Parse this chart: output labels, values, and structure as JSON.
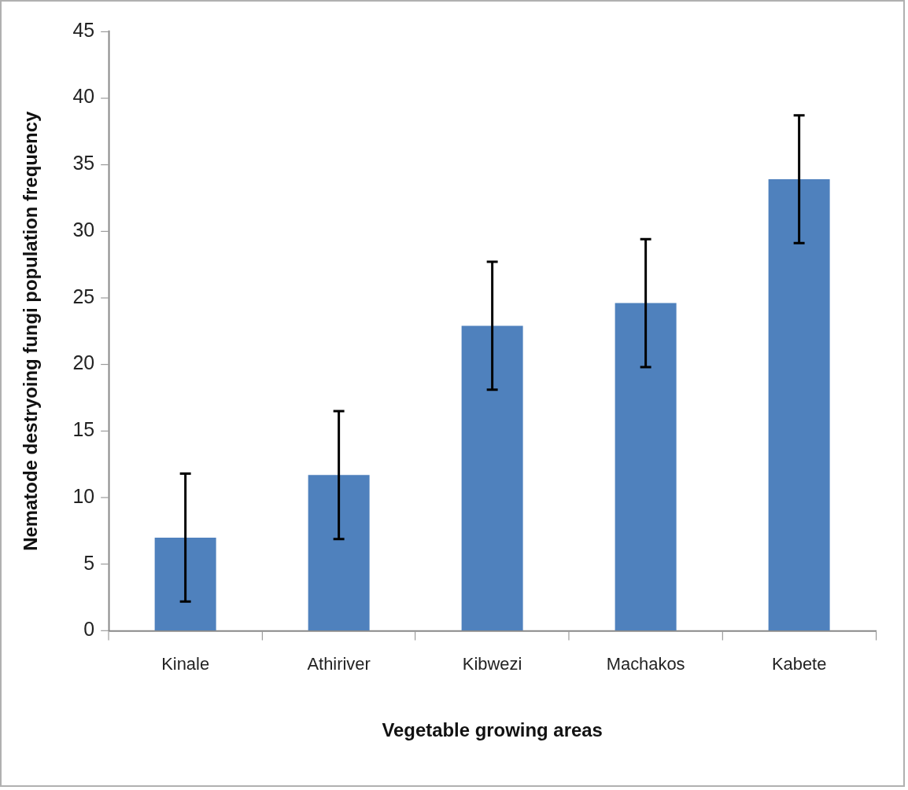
{
  "chart_data": {
    "type": "bar",
    "xlabel": "Vegetable growing areas",
    "ylabel": "Nematode destryoing fungi population frequency",
    "categories": [
      "Kinale",
      "Athiriver",
      "Kibwezi",
      "Machakos",
      "Kabete"
    ],
    "values": [
      7.0,
      11.7,
      22.9,
      24.6,
      33.9
    ],
    "errors": [
      4.8,
      4.8,
      4.8,
      4.8,
      4.8
    ],
    "color": "#4f81bd",
    "ylim": [
      0,
      45
    ],
    "yticks": [
      0,
      5,
      10,
      15,
      20,
      25,
      30,
      35,
      40,
      45
    ],
    "grid": false,
    "legend": false
  }
}
